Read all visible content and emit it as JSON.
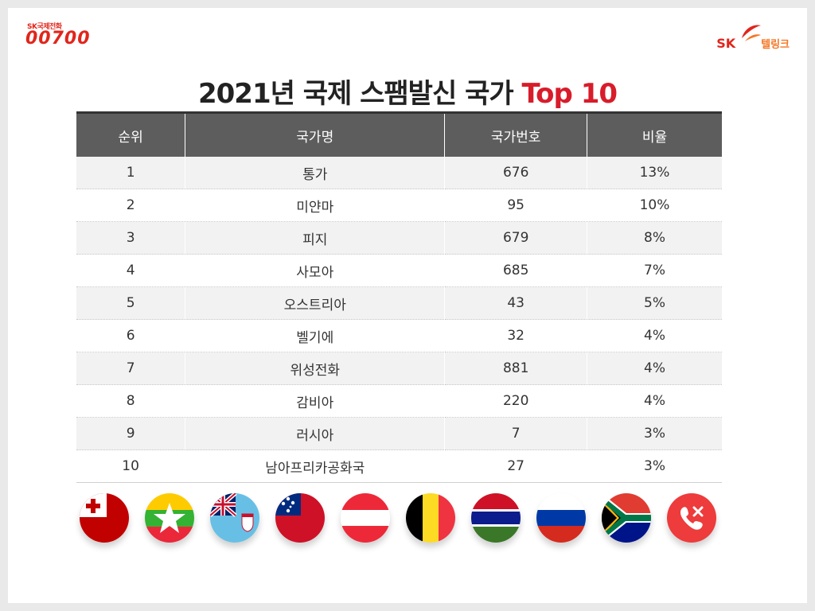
{
  "brand_left": {
    "sub": "SK국제전화",
    "main": "00700"
  },
  "brand_right": {
    "sk": "SK",
    "telink": "텔링크"
  },
  "title": {
    "main": "2021년 국제 스팸발신 국가",
    "accent": "Top 10"
  },
  "table": {
    "headers": [
      "순위",
      "국가명",
      "국가번호",
      "비율"
    ],
    "rows": [
      [
        "1",
        "통가",
        "676",
        "13%"
      ],
      [
        "2",
        "미얀마",
        "95",
        "10%"
      ],
      [
        "3",
        "피지",
        "679",
        "8%"
      ],
      [
        "4",
        "사모아",
        "685",
        "7%"
      ],
      [
        "5",
        "오스트리아",
        "43",
        "5%"
      ],
      [
        "6",
        "벨기에",
        "32",
        "4%"
      ],
      [
        "7",
        "위성전화",
        "881",
        "4%"
      ],
      [
        "8",
        "감비아",
        "220",
        "4%"
      ],
      [
        "9",
        "러시아",
        "7",
        "3%"
      ],
      [
        "10",
        "남아프리카공화국",
        "27",
        "3%"
      ]
    ]
  },
  "flags": [
    "tonga-flag-icon",
    "myanmar-flag-icon",
    "fiji-flag-icon",
    "samoa-flag-icon",
    "austria-flag-icon",
    "belgium-flag-icon",
    "gambia-flag-icon",
    "russia-flag-icon",
    "south-africa-flag-icon",
    "blocked-call-icon"
  ],
  "colors": {
    "brand_red": "#e1251b",
    "accent_red": "#d81c2a",
    "header_gray": "#5d5d5d"
  }
}
